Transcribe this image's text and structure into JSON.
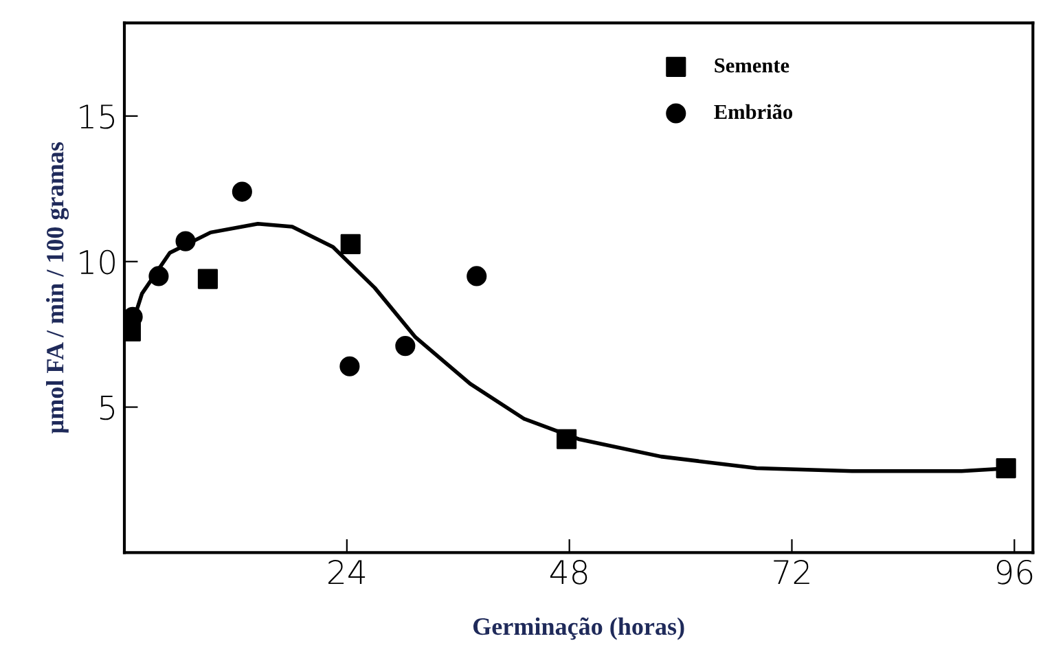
{
  "chart_data": {
    "type": "scatter",
    "xlabel": "Germinação (horas)",
    "ylabel": "µmol FA / min / 100 gramas",
    "xlim": [
      0,
      98
    ],
    "ylim": [
      0,
      18.2
    ],
    "xticks": [
      24,
      48,
      72,
      96
    ],
    "yticks": [
      5,
      10,
      15
    ],
    "grid": false,
    "legend": "top",
    "series": [
      {
        "name": "Semente",
        "color": "#000000",
        "marker": "square",
        "x": [
          0.7,
          9,
          24.4,
          47.7,
          95.1
        ],
        "values": [
          7.6,
          9.4,
          10.6,
          3.9,
          2.9
        ]
      },
      {
        "name": "Embrião",
        "color": "#000000",
        "marker": "circle",
        "x": [
          0.9,
          3.7,
          6.6,
          12.7,
          24.3,
          30.3,
          38
        ],
        "values": [
          8.1,
          9.5,
          10.7,
          12.4,
          6.4,
          7.1,
          9.5
        ]
      },
      {
        "type": "line",
        "color": "#000000",
        "marker": "none",
        "x": [
          0.7,
          1.9,
          4.9,
          9.3,
          14.4,
          18.1,
          22.5,
          27,
          31.4,
          37.3,
          43.1,
          49,
          57.9,
          68.2,
          78.5,
          90.3,
          95.4
        ],
        "values": [
          7.7,
          8.9,
          10.3,
          11.0,
          11.3,
          11.2,
          10.5,
          9.1,
          7.4,
          5.8,
          4.6,
          3.9,
          3.3,
          2.9,
          2.8,
          2.8,
          2.9
        ]
      }
    ]
  }
}
